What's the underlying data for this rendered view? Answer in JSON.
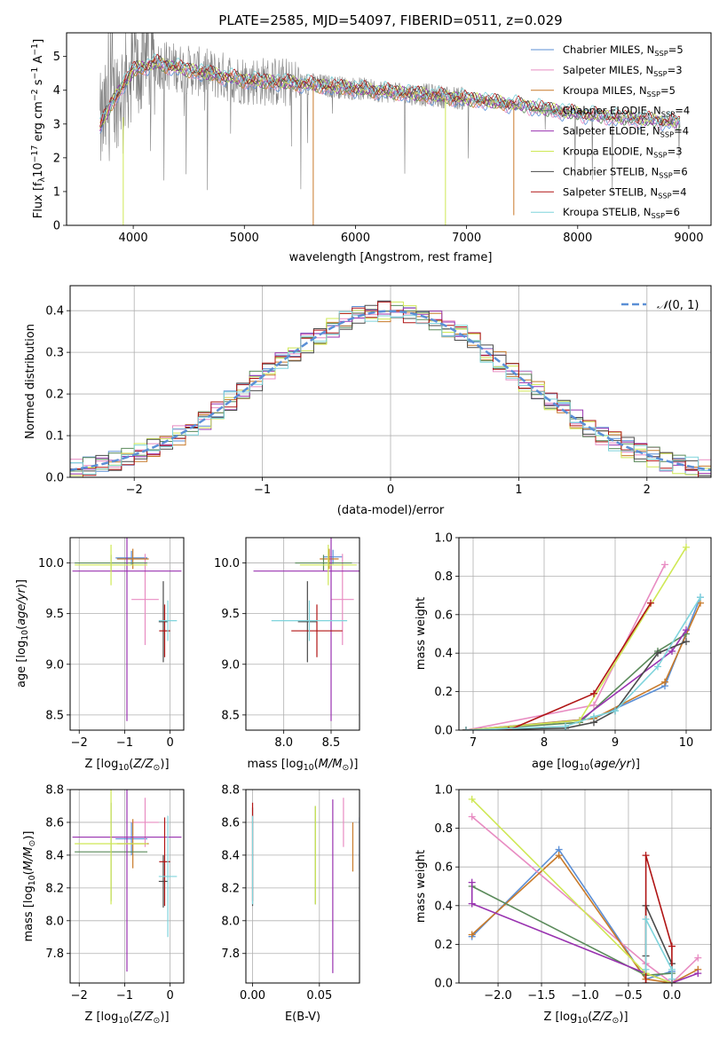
{
  "colors": {
    "Chabrier MILES": "#5b8fd6",
    "Salpeter MILES": "#e88cc2",
    "Kroupa MILES": "#c87a2a",
    "Chabrier ELODIE": "#5a8a5a",
    "Salpeter ELODIE": "#9932b0",
    "Kroupa ELODIE": "#cfe855",
    "Chabrier STELIB": "#4a4a4a",
    "Salpeter STELIB": "#b01515",
    "Kroupa STELIB": "#7fd4dc",
    "data": "#808080",
    "normal": "#5b8fd6"
  },
  "chart_data": [
    {
      "id": "spectrum",
      "type": "line",
      "title": "PLATE=2585, MJD=54097, FIBERID=0511, z=0.029",
      "xlabel": "wavelength [Angstrom, rest frame]",
      "ylabel": "Flux [fλ10⁻¹⁷ erg cm⁻² s⁻¹ A⁻¹]",
      "xlim": [
        3400,
        9200
      ],
      "ylim": [
        0,
        5.7
      ],
      "xticks": [
        4000,
        5000,
        6000,
        7000,
        8000,
        9000
      ],
      "yticks": [
        0,
        1,
        2,
        3,
        4,
        5
      ],
      "legend_position": "upper right",
      "legend": [
        "Chabrier MILES, N_SSP=5",
        "Salpeter MILES, N_SSP=3",
        "Kroupa MILES, N_SSP=5",
        "Chabrier ELODIE, N_SSP=4",
        "Salpeter ELODIE, N_SSP=4",
        "Kroupa ELODIE, N_SSP=3",
        "Chabrier STELIB, N_SSP=6",
        "Salpeter STELIB, N_SSP=4",
        "Kroupa STELIB, N_SSP=6"
      ],
      "continuum": {
        "x": [
          3700,
          3800,
          4000,
          4200,
          4500,
          5000,
          5500,
          6000,
          6500,
          7000,
          7500,
          8000,
          8500,
          8900
        ],
        "y": [
          2.9,
          3.6,
          4.6,
          4.8,
          4.6,
          4.3,
          4.2,
          4.05,
          3.9,
          3.75,
          3.55,
          3.3,
          3.15,
          3.05
        ]
      }
    },
    {
      "id": "residual_histogram",
      "type": "line",
      "xlabel": "(data-model)/error",
      "ylabel": "Normed distribution",
      "xlim": [
        -2.5,
        2.5
      ],
      "ylim": [
        0,
        0.46
      ],
      "xticks": [
        -2,
        -1,
        0,
        1,
        2
      ],
      "yticks": [
        0.0,
        0.1,
        0.2,
        0.3,
        0.4
      ],
      "legend": [
        "𝒩(0, 1)"
      ],
      "legend_position": "upper right",
      "bin_width": 0.1
    },
    {
      "id": "age_vs_Z",
      "type": "scatter",
      "xlabel": "Z [log₁₀(Z/Z⊙)]",
      "ylabel": "age  [log₁₀(age/yr)]",
      "xlim": [
        -2.2,
        0.3
      ],
      "ylim": [
        8.35,
        10.25
      ],
      "xticks": [
        -2,
        -1,
        0
      ],
      "yticks": [
        8.5,
        9.0,
        9.5,
        10.0
      ],
      "points": [
        {
          "series": "Chabrier MILES",
          "x": -0.85,
          "xerr": 0.35,
          "y": 10.05,
          "yerr": 0.07
        },
        {
          "series": "Salpeter MILES",
          "x": -0.55,
          "xerr": 0.3,
          "y": 9.64,
          "yerr": 0.45
        },
        {
          "series": "Kroupa MILES",
          "x": -0.82,
          "xerr": 0.35,
          "y": 10.04,
          "yerr": 0.1
        },
        {
          "series": "Chabrier ELODIE",
          "x": -1.3,
          "xerr": 0.8,
          "y": 10.0,
          "yerr": 0.08
        },
        {
          "series": "Salpeter ELODIE",
          "x": -0.95,
          "xerr": 1.2,
          "y": 9.92,
          "yerr": 1.48
        },
        {
          "series": "Kroupa ELODIE",
          "x": -1.3,
          "xerr": 0.8,
          "y": 9.98,
          "yerr": 0.2
        },
        {
          "series": "Chabrier STELIB",
          "x": -0.15,
          "xerr": 0.1,
          "y": 9.42,
          "yerr": 0.4
        },
        {
          "series": "Salpeter STELIB",
          "x": -0.12,
          "xerr": 0.12,
          "y": 9.33,
          "yerr": 0.26
        },
        {
          "series": "Kroupa STELIB",
          "x": -0.05,
          "xerr": 0.2,
          "y": 9.43,
          "yerr": 0.2
        }
      ]
    },
    {
      "id": "age_vs_mass",
      "type": "scatter",
      "xlabel": "mass [log₁₀(M/M⊙)]",
      "xlim": [
        7.6,
        8.8
      ],
      "ylim": [
        8.35,
        10.25
      ],
      "xticks": [
        8.0,
        8.5
      ],
      "yticks": [
        8.5,
        9.0,
        9.5,
        10.0
      ],
      "points": [
        {
          "series": "Chabrier MILES",
          "x": 8.52,
          "xerr": 0.1,
          "y": 10.06,
          "yerr": 0.07
        },
        {
          "series": "Salpeter MILES",
          "x": 8.62,
          "xerr": 0.12,
          "y": 9.64,
          "yerr": 0.45
        },
        {
          "series": "Kroupa MILES",
          "x": 8.48,
          "xerr": 0.1,
          "y": 10.04,
          "yerr": 0.1
        },
        {
          "series": "Chabrier ELODIE",
          "x": 8.42,
          "xerr": 0.3,
          "y": 10.0,
          "yerr": 0.08
        },
        {
          "series": "Salpeter ELODIE",
          "x": 8.5,
          "xerr": 0.82,
          "y": 9.92,
          "yerr": 1.48
        },
        {
          "series": "Kroupa ELODIE",
          "x": 8.47,
          "xerr": 0.3,
          "y": 9.98,
          "yerr": 0.2
        },
        {
          "series": "Chabrier STELIB",
          "x": 8.25,
          "xerr": 0.1,
          "y": 9.42,
          "yerr": 0.4
        },
        {
          "series": "Salpeter STELIB",
          "x": 8.35,
          "xerr": 0.27,
          "y": 9.33,
          "yerr": 0.26
        },
        {
          "series": "Kroupa STELIB",
          "x": 8.27,
          "xerr": 0.4,
          "y": 9.43,
          "yerr": 0.2
        }
      ]
    },
    {
      "id": "massweight_vs_age",
      "type": "line",
      "xlabel": "age  [log₁₀(age/yr)]",
      "ylabel": "mass weight",
      "xlim": [
        6.8,
        10.35
      ],
      "ylim": [
        0,
        1.0
      ],
      "xticks": [
        7,
        8,
        9,
        10
      ],
      "yticks": [
        0.0,
        0.2,
        0.4,
        0.6,
        0.8,
        1.0
      ],
      "series": [
        {
          "name": "Chabrier MILES",
          "x": [
            6.9,
            8.7,
            9.7,
            10.2
          ],
          "y": [
            0.0,
            0.06,
            0.23,
            0.69
          ]
        },
        {
          "name": "Salpeter MILES",
          "x": [
            6.9,
            8.7,
            9.7
          ],
          "y": [
            0.0,
            0.13,
            0.86
          ]
        },
        {
          "name": "Kroupa MILES",
          "x": [
            6.9,
            8.7,
            9.7,
            10.2
          ],
          "y": [
            0.0,
            0.06,
            0.25,
            0.66
          ]
        },
        {
          "name": "Chabrier ELODIE",
          "x": [
            6.9,
            8.5,
            9.6,
            10.0
          ],
          "y": [
            0.0,
            0.04,
            0.41,
            0.5
          ]
        },
        {
          "name": "Salpeter ELODIE",
          "x": [
            6.9,
            8.5,
            9.8,
            10.0
          ],
          "y": [
            0.0,
            0.05,
            0.41,
            0.52
          ]
        },
        {
          "name": "Kroupa ELODIE",
          "x": [
            6.9,
            8.5,
            10.0
          ],
          "y": [
            0.0,
            0.05,
            0.95
          ]
        },
        {
          "name": "Chabrier STELIB",
          "x": [
            6.9,
            8.3,
            8.7,
            9.0,
            9.6,
            10.0
          ],
          "y": [
            0.0,
            0.01,
            0.04,
            0.1,
            0.4,
            0.46
          ]
        },
        {
          "name": "Salpeter STELIB",
          "x": [
            6.9,
            7.5,
            8.7,
            9.5
          ],
          "y": [
            0.0,
            0.0,
            0.19,
            0.66
          ]
        },
        {
          "name": "Kroupa STELIB",
          "x": [
            6.9,
            8.3,
            8.7,
            9.0,
            9.6,
            10.2
          ],
          "y": [
            0.0,
            0.02,
            0.07,
            0.1,
            0.33,
            0.69
          ]
        }
      ]
    },
    {
      "id": "mass_vs_Z",
      "type": "scatter",
      "xlabel": "Z [log₁₀(Z/Z⊙)]",
      "ylabel": "mass [log₁₀(M/M⊙)]",
      "xlim": [
        -2.2,
        0.3
      ],
      "ylim": [
        7.62,
        8.8
      ],
      "xticks": [
        -2,
        -1,
        0
      ],
      "yticks": [
        7.8,
        8.0,
        8.2,
        8.4,
        8.6,
        8.8
      ],
      "points": [
        {
          "series": "Chabrier MILES",
          "x": -0.85,
          "xerr": 0.35,
          "y": 8.5,
          "yerr": 0.1
        },
        {
          "series": "Salpeter MILES",
          "x": -0.55,
          "xerr": 0.3,
          "y": 8.6,
          "yerr": 0.15
        },
        {
          "series": "Kroupa MILES",
          "x": -0.82,
          "xerr": 0.35,
          "y": 8.47,
          "yerr": 0.15
        },
        {
          "series": "Chabrier ELODIE",
          "x": -1.3,
          "xerr": 0.8,
          "y": 8.42,
          "yerr": 0.3
        },
        {
          "series": "Salpeter ELODIE",
          "x": -0.95,
          "xerr": 1.2,
          "y": 8.51,
          "yerr": 0.82
        },
        {
          "series": "Kroupa ELODIE",
          "x": -1.3,
          "xerr": 0.8,
          "y": 8.47,
          "yerr": 0.37
        },
        {
          "series": "Chabrier STELIB",
          "x": -0.15,
          "xerr": 0.1,
          "y": 8.24,
          "yerr": 0.16
        },
        {
          "series": "Salpeter STELIB",
          "x": -0.12,
          "xerr": 0.12,
          "y": 8.36,
          "yerr": 0.27
        },
        {
          "series": "Kroupa STELIB",
          "x": -0.05,
          "xerr": 0.2,
          "y": 8.27,
          "yerr": 0.37
        }
      ]
    },
    {
      "id": "mass_vs_EBV",
      "type": "scatter",
      "xlabel": "E(B-V)",
      "xlim": [
        -0.005,
        0.08
      ],
      "ylim": [
        7.62,
        8.8
      ],
      "xticks": [
        0.0,
        0.05
      ],
      "yticks": [
        7.8,
        8.0,
        8.2,
        8.4,
        8.6,
        8.8
      ],
      "points": [
        {
          "series": "Chabrier MILES",
          "x": 0.08,
          "y": 8.47,
          "yerr": 0.16
        },
        {
          "series": "Salpeter MILES",
          "x": 0.068,
          "y": 8.6,
          "yerr": 0.15
        },
        {
          "series": "Kroupa MILES",
          "x": 0.075,
          "y": 8.45,
          "yerr": 0.15
        },
        {
          "series": "Chabrier ELODIE",
          "x": 0.047,
          "y": 8.4,
          "yerr": 0.3
        },
        {
          "series": "Salpeter ELODIE",
          "x": 0.06,
          "y": 8.21,
          "yerr": 0.53
        },
        {
          "series": "Kroupa ELODIE",
          "x": 0.047,
          "y": 8.4,
          "yerr": 0.3
        },
        {
          "series": "Chabrier STELIB",
          "x": 0.0,
          "y": 8.39,
          "yerr": 0.3
        },
        {
          "series": "Salpeter STELIB",
          "x": 0.0,
          "y": 8.42,
          "yerr": 0.3
        },
        {
          "series": "Kroupa STELIB",
          "x": 0.0,
          "y": 8.37,
          "yerr": 0.27
        }
      ]
    },
    {
      "id": "massweight_vs_Z",
      "type": "line",
      "xlabel": "Z [log₁₀(Z/Z⊙)]",
      "ylabel": "mass weight",
      "xlim": [
        -2.45,
        0.45
      ],
      "ylim": [
        0,
        1.0
      ],
      "xticks": [
        -2.0,
        -1.5,
        -1.0,
        -0.5,
        0.0
      ],
      "yticks": [
        0.0,
        0.2,
        0.4,
        0.6,
        0.8,
        1.0
      ],
      "series": [
        {
          "name": "Chabrier MILES",
          "x": [
            -2.3,
            -1.3,
            -0.3,
            0.0
          ],
          "y": [
            0.24,
            0.69,
            0.02,
            0.06
          ]
        },
        {
          "name": "Salpeter MILES",
          "x": [
            -2.3,
            -0.3,
            0.0,
            0.3
          ],
          "y": [
            0.86,
            0.1,
            0.0,
            0.13
          ]
        },
        {
          "name": "Kroupa MILES",
          "x": [
            -2.3,
            -1.3,
            -0.3,
            0.0,
            0.3
          ],
          "y": [
            0.25,
            0.66,
            0.02,
            0.0,
            0.07
          ]
        },
        {
          "name": "Chabrier ELODIE",
          "x": [
            -2.3,
            -0.3,
            0.0
          ],
          "y": [
            0.5,
            0.04,
            0.05
          ]
        },
        {
          "name": "Salpeter ELODIE",
          "x": [
            -2.3,
            -2.3,
            -0.3,
            0.0,
            0.3
          ],
          "y": [
            0.52,
            0.41,
            0.05,
            0.0,
            0.05
          ]
        },
        {
          "name": "Kroupa ELODIE",
          "x": [
            -2.3,
            -0.3,
            0.0
          ],
          "y": [
            0.95,
            0.05,
            0.0
          ]
        },
        {
          "name": "Chabrier STELIB",
          "x": [
            -0.3,
            -0.3,
            0.0,
            0.0
          ],
          "y": [
            0.14,
            0.4,
            0.1,
            0.0
          ]
        },
        {
          "name": "Salpeter STELIB",
          "x": [
            -0.3,
            -0.3,
            0.0,
            0.0
          ],
          "y": [
            0.0,
            0.66,
            0.19,
            0.0
          ]
        },
        {
          "name": "Kroupa STELIB",
          "x": [
            -0.3,
            -0.3,
            0.0,
            0.0
          ],
          "y": [
            0.07,
            0.33,
            0.07,
            0.02
          ]
        }
      ]
    }
  ]
}
